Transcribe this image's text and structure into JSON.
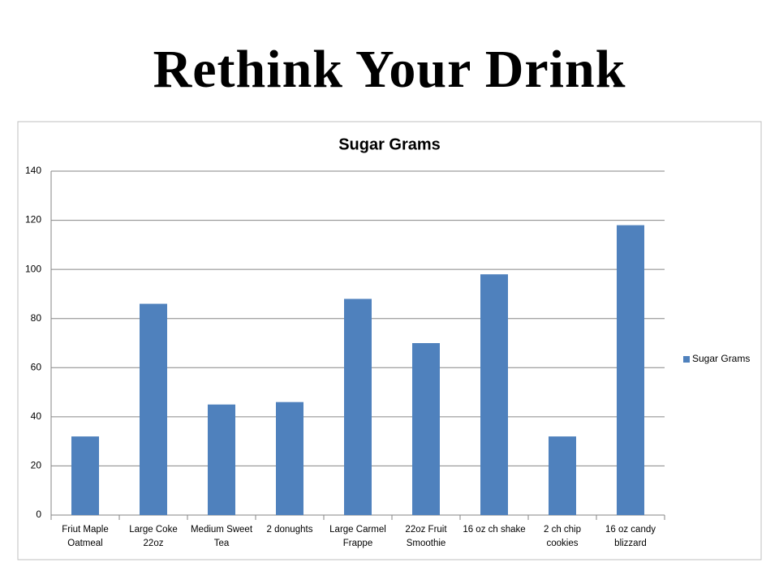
{
  "page_title": "Rethink Your Drink",
  "chart_data": {
    "type": "bar",
    "title": "Sugar Grams",
    "categories": [
      "Friut Maple Oatmeal",
      "Large Coke 22oz",
      "Medium Sweet Tea",
      "2 donughts",
      "Large Carmel Frappe",
      "22oz Fruit Smoothie",
      "16 oz ch shake",
      "2 ch chip cookies",
      "16 oz candy blizzard"
    ],
    "series": [
      {
        "name": "Sugar Grams",
        "color": "#4f81bd",
        "values": [
          32,
          86,
          45,
          46,
          88,
          70,
          98,
          32,
          118
        ]
      }
    ],
    "ylim": [
      0,
      140
    ],
    "yticks": [
      0,
      20,
      40,
      60,
      80,
      100,
      120,
      140
    ],
    "grid": true,
    "legend": "right"
  }
}
